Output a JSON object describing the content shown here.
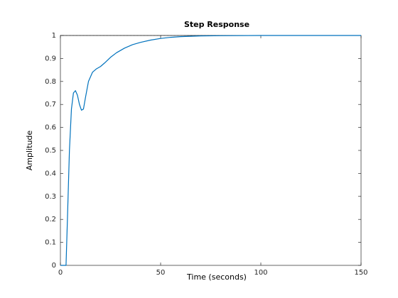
{
  "chart_data": {
    "type": "line",
    "title": "Step Response",
    "x_label": "Time (seconds)",
    "y_label": "Amplitude",
    "x": [
      0,
      2.8,
      3.5,
      4.5,
      5.5,
      6.5,
      7.5,
      8.5,
      9.5,
      10.5,
      11.5,
      12.5,
      14,
      16,
      18,
      20,
      22,
      25,
      28,
      32,
      36,
      40,
      45,
      50,
      55,
      60,
      70,
      80,
      100,
      150
    ],
    "series": [
      {
        "name": "Step response",
        "color": "#0072bd",
        "values": [
          0,
          0,
          0.2,
          0.5,
          0.68,
          0.75,
          0.76,
          0.74,
          0.7,
          0.675,
          0.68,
          0.73,
          0.8,
          0.84,
          0.855,
          0.865,
          0.88,
          0.905,
          0.925,
          0.945,
          0.96,
          0.97,
          0.98,
          0.987,
          0.992,
          0.995,
          0.998,
          0.999,
          1,
          1
        ]
      }
    ],
    "reference_line": 1,
    "xlim": [
      0,
      150
    ],
    "xticks": [
      0,
      50,
      100,
      150
    ],
    "ylim": [
      0,
      1
    ],
    "yticks": [
      0,
      0.1,
      0.2,
      0.3,
      0.4,
      0.5,
      0.6,
      0.7,
      0.8,
      0.9,
      1
    ],
    "grid": false
  }
}
